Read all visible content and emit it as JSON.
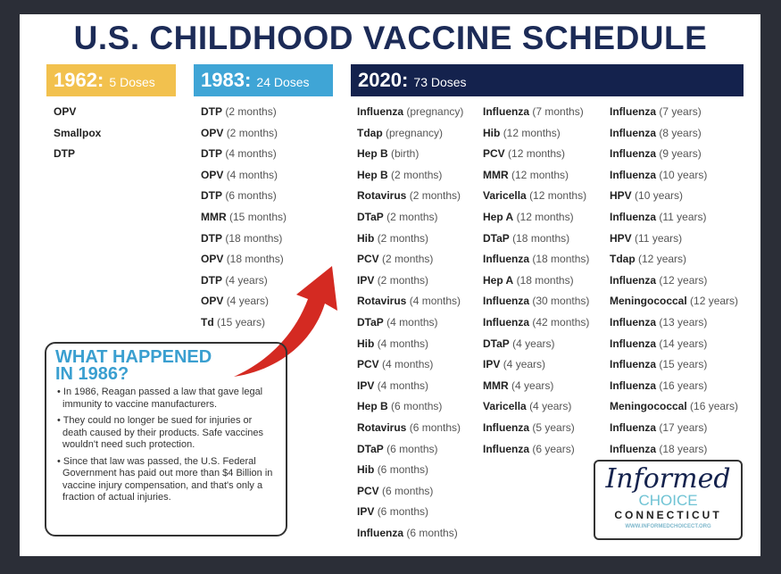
{
  "title": "U.S. CHILDHOOD VACCINE SCHEDULE",
  "colors": {
    "navy": "#14224d",
    "yellow": "#f2c14e",
    "blue": "#3fa5d6",
    "arrow": "#d42a22",
    "callout_heading": "#3a9fd0"
  },
  "headers": [
    {
      "year": "1962:",
      "doses": "5 Doses"
    },
    {
      "year": "1983:",
      "doses": "24 Doses"
    },
    {
      "year": "2020:",
      "doses": "73 Doses"
    }
  ],
  "col1962": [
    {
      "name": "OPV",
      "age": ""
    },
    {
      "name": "Smallpox",
      "age": ""
    },
    {
      "name": "DTP",
      "age": ""
    }
  ],
  "col1983": [
    {
      "name": "DTP",
      "age": "(2 months)"
    },
    {
      "name": "OPV",
      "age": "(2 months)"
    },
    {
      "name": "DTP",
      "age": "(4 months)"
    },
    {
      "name": "OPV",
      "age": "(4 months)"
    },
    {
      "name": "DTP",
      "age": "(6 months)"
    },
    {
      "name": "MMR",
      "age": "(15 months)"
    },
    {
      "name": "DTP",
      "age": "(18 months)"
    },
    {
      "name": "OPV",
      "age": "(18 months)"
    },
    {
      "name": "DTP",
      "age": "(4 years)"
    },
    {
      "name": "OPV",
      "age": "(4 years)"
    },
    {
      "name": "Td",
      "age": "(15 years)"
    }
  ],
  "col2020a": [
    {
      "name": "Influenza",
      "age": "(pregnancy)"
    },
    {
      "name": "Tdap",
      "age": "(pregnancy)"
    },
    {
      "name": "Hep B",
      "age": "(birth)"
    },
    {
      "name": "Hep B",
      "age": "(2 months)"
    },
    {
      "name": "Rotavirus",
      "age": "(2 months)"
    },
    {
      "name": "DTaP",
      "age": "(2 months)"
    },
    {
      "name": "Hib",
      "age": "(2 months)"
    },
    {
      "name": "PCV",
      "age": "(2 months)"
    },
    {
      "name": "IPV",
      "age": "(2 months)"
    },
    {
      "name": "Rotavirus",
      "age": "(4 months)"
    },
    {
      "name": "DTaP",
      "age": "(4 months)"
    },
    {
      "name": "Hib",
      "age": "(4 months)"
    },
    {
      "name": "PCV",
      "age": "(4 months)"
    },
    {
      "name": "IPV",
      "age": "(4 months)"
    },
    {
      "name": "Hep B",
      "age": "(6 months)"
    },
    {
      "name": "Rotavirus",
      "age": "(6 months)"
    },
    {
      "name": "DTaP",
      "age": "(6 months)"
    },
    {
      "name": "Hib",
      "age": "(6 months)"
    },
    {
      "name": "PCV",
      "age": "(6 months)"
    },
    {
      "name": "IPV",
      "age": "(6 months)"
    },
    {
      "name": "Influenza",
      "age": "(6 months)"
    }
  ],
  "col2020b": [
    {
      "name": "Influenza",
      "age": "(7 months)"
    },
    {
      "name": "Hib",
      "age": "(12 months)"
    },
    {
      "name": "PCV",
      "age": "(12 months)"
    },
    {
      "name": "MMR",
      "age": "(12 months)"
    },
    {
      "name": "Varicella",
      "age": "(12 months)"
    },
    {
      "name": "Hep A",
      "age": "(12 months)"
    },
    {
      "name": "DTaP",
      "age": "(18 months)"
    },
    {
      "name": "Influenza",
      "age": "(18 months)"
    },
    {
      "name": "Hep A",
      "age": "(18 months)"
    },
    {
      "name": "Influenza",
      "age": "(30 months)"
    },
    {
      "name": "Influenza",
      "age": "(42 months)"
    },
    {
      "name": "DTaP",
      "age": "(4 years)"
    },
    {
      "name": "IPV",
      "age": "(4 years)"
    },
    {
      "name": "MMR",
      "age": "(4 years)"
    },
    {
      "name": "Varicella",
      "age": "(4 years)"
    },
    {
      "name": "Influenza",
      "age": "(5 years)"
    },
    {
      "name": "Influenza",
      "age": "(6 years)"
    }
  ],
  "col2020c": [
    {
      "name": "Influenza",
      "age": "(7 years)"
    },
    {
      "name": "Influenza",
      "age": "(8 years)"
    },
    {
      "name": "Influenza",
      "age": "(9 years)"
    },
    {
      "name": "Influenza",
      "age": "(10 years)"
    },
    {
      "name": "HPV",
      "age": "(10 years)"
    },
    {
      "name": "Influenza",
      "age": "(11 years)"
    },
    {
      "name": "HPV",
      "age": "(11 years)"
    },
    {
      "name": "Tdap",
      "age": "(12 years)"
    },
    {
      "name": "Influenza",
      "age": "(12 years)"
    },
    {
      "name": "Meningococcal",
      "age": "(12 years)"
    },
    {
      "name": "Influenza",
      "age": "(13 years)"
    },
    {
      "name": "Influenza",
      "age": "(14 years)"
    },
    {
      "name": "Influenza",
      "age": "(15 years)"
    },
    {
      "name": "Influenza",
      "age": "(16 years)"
    },
    {
      "name": "Meningococcal",
      "age": "(16 years)"
    },
    {
      "name": "Influenza",
      "age": "(17 years)"
    },
    {
      "name": "Influenza",
      "age": "(18 years)"
    }
  ],
  "callout": {
    "heading_line1": "WHAT HAPPENED",
    "heading_line2": "IN 1986?",
    "bullets": [
      "• In 1986, Reagan passed a law that gave legal immunity to vaccine manufacturers.",
      "• They could no longer be sued for injuries or death caused by their products. Safe vaccines wouldn't need such protection.",
      "• Since that law was passed, the U.S. Federal Government has paid out more than $4 Billion in vaccine injury compensation, and that's only a fraction of actual injuries."
    ]
  },
  "logo": {
    "script": "Informed",
    "choice": "CHOICE",
    "state": "CONNECTICUT",
    "url": "WWW.INFORMEDCHOICECT.ORG"
  }
}
